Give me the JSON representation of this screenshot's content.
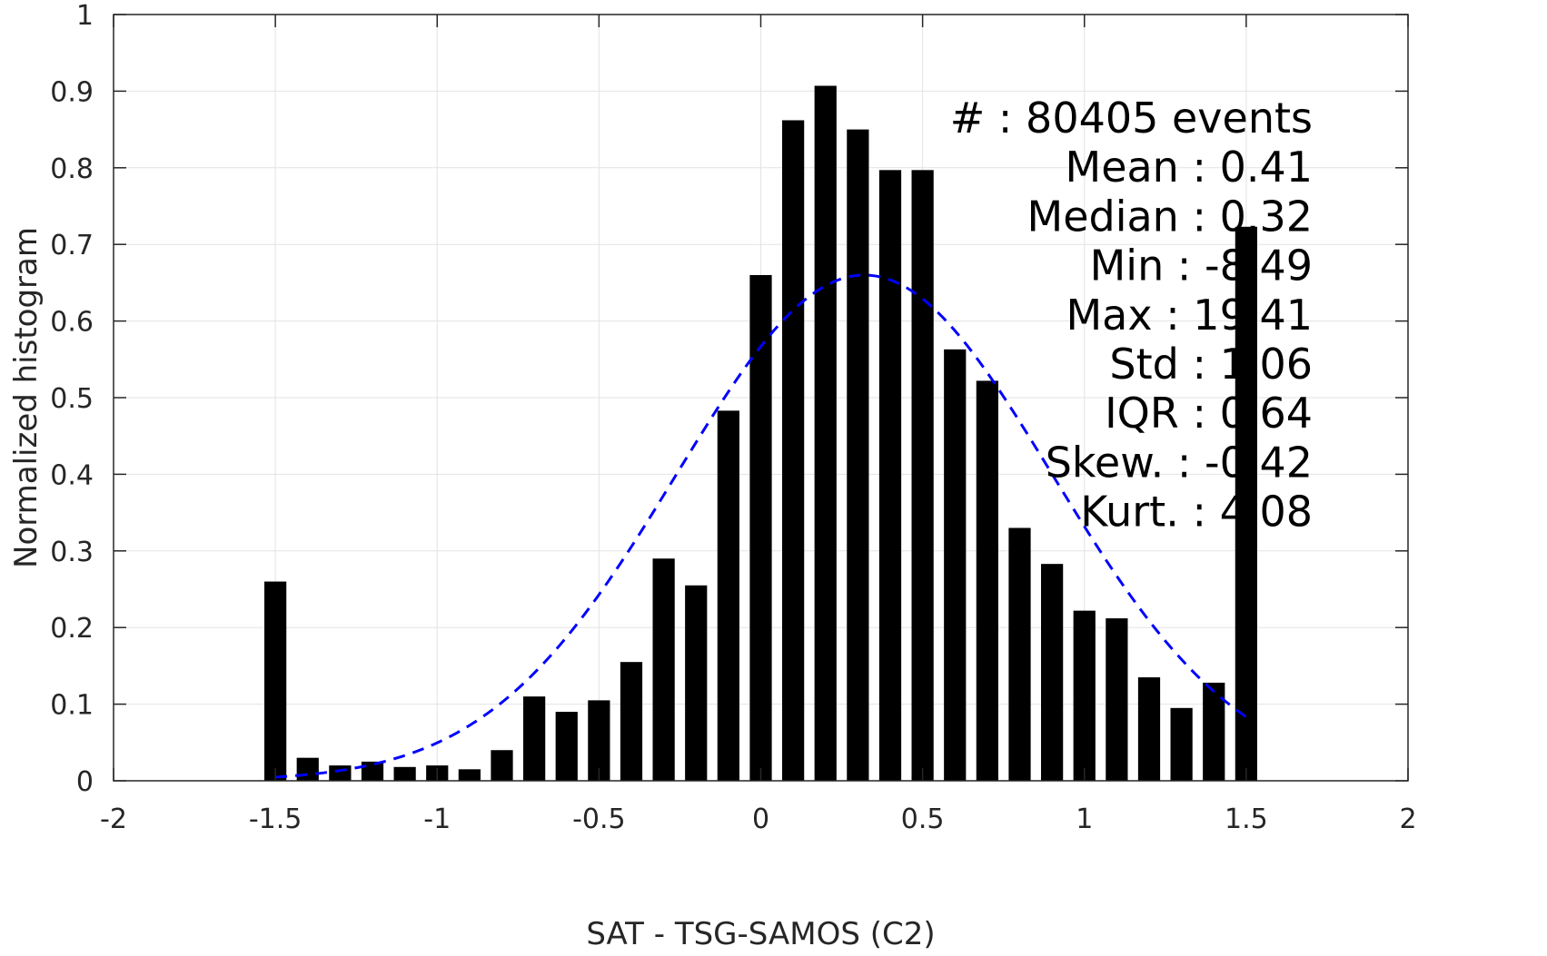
{
  "chart_data": {
    "type": "bar",
    "xlabel": "SAT - TSG-SAMOS (C2)",
    "ylabel": "Normalized histogram",
    "xlim": [
      -2,
      2
    ],
    "ylim": [
      0,
      1
    ],
    "xticks": [
      "-2",
      "-1.5",
      "-1",
      "-0.5",
      "0",
      "0.5",
      "1",
      "1.5",
      "2"
    ],
    "yticks": [
      "0",
      "0.1",
      "0.2",
      "0.3",
      "0.4",
      "0.5",
      "0.6",
      "0.7",
      "0.8",
      "0.9",
      "1"
    ],
    "grid": true,
    "bar_color": "#000000",
    "fit_color": "#0000ff",
    "bars": {
      "x": [
        -1.5,
        -1.4,
        -1.3,
        -1.2,
        -1.1,
        -1.0,
        -0.9,
        -0.8,
        -0.7,
        -0.6,
        -0.5,
        -0.4,
        -0.3,
        -0.2,
        -0.1,
        0.0,
        0.1,
        0.2,
        0.3,
        0.4,
        0.5,
        0.6,
        0.7,
        0.8,
        0.9,
        1.0,
        1.1,
        1.2,
        1.3,
        1.4,
        1.5
      ],
      "values": [
        0.26,
        0.03,
        0.02,
        0.025,
        0.018,
        0.02,
        0.015,
        0.04,
        0.11,
        0.09,
        0.105,
        0.155,
        0.29,
        0.255,
        0.483,
        0.66,
        0.862,
        0.907,
        0.85,
        0.797,
        0.797,
        0.563,
        0.522,
        0.33,
        0.283,
        0.222,
        0.212,
        0.135,
        0.095,
        0.128,
        0.723
      ]
    },
    "fit_curve": {
      "style": "dashed",
      "mean": 0.32,
      "peak": 0.66,
      "sigma": 0.58,
      "x_range": [
        -1.5,
        1.5
      ]
    },
    "annotations": [
      "#  : 80405 events",
      "Mean : 0.41",
      "Median : 0.32",
      "Min : -8.49",
      "Max : 19.41",
      "Std : 1.06",
      "IQR : 0.64",
      "Skew. : -0.42",
      "Kurt. : 4.08"
    ]
  }
}
